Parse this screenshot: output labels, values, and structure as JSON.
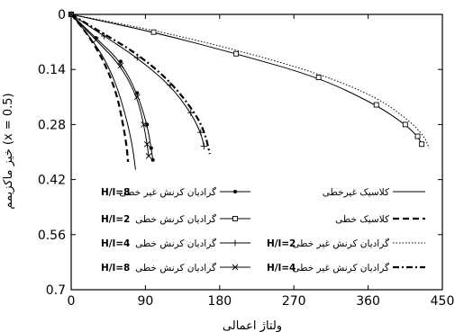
{
  "chart_data": {
    "type": "line",
    "title": "",
    "xlabel": "ولتاژ اعمالی",
    "ylabel": "خیز ماکزیمم (x = 0.5)",
    "xlim": [
      0,
      450
    ],
    "ylim": [
      0,
      0.7
    ],
    "y_inverted": true,
    "xticks": [
      "0",
      "90",
      "180",
      "270",
      "360",
      "450"
    ],
    "yticks": [
      "0",
      "0.14",
      "0.28",
      "0.42",
      "0.56",
      "0.7"
    ],
    "grid": false,
    "legend_placement": "lower-center",
    "series": [
      {
        "name": "کلاسیک غیرخطی",
        "line": "solid",
        "marker": "none",
        "x": [
          0,
          20,
          40,
          55,
          65,
          72,
          76,
          78
        ],
        "y": [
          0,
          0.05,
          0.11,
          0.18,
          0.25,
          0.31,
          0.36,
          0.395
        ]
      },
      {
        "name": "کلاسیک خطی",
        "line": "dashed",
        "marker": "none",
        "x": [
          0,
          20,
          40,
          55,
          62,
          67,
          69
        ],
        "y": [
          0,
          0.05,
          0.12,
          0.2,
          0.27,
          0.33,
          0.375
        ]
      },
      {
        "name": "گرادیان کرنش غیر خطی H/l=2",
        "line": "dotted",
        "marker": "none",
        "x": [
          0,
          100,
          200,
          300,
          370,
          410,
          428,
          434
        ],
        "y": [
          0,
          0.04,
          0.09,
          0.15,
          0.21,
          0.27,
          0.31,
          0.34
        ]
      },
      {
        "name": "گرادیان کرنش غیر خطی H/l=4",
        "line": "dashdot",
        "marker": "none",
        "x": [
          0,
          40,
          80,
          120,
          150,
          162,
          168
        ],
        "y": [
          0,
          0.05,
          0.1,
          0.17,
          0.25,
          0.3,
          0.355
        ]
      },
      {
        "name": "گرادیان کرنش غیر خطی H/l=8",
        "line": "solid",
        "marker": "dot",
        "x": [
          0,
          30,
          60,
          80,
          92,
          97,
          99
        ],
        "y": [
          0,
          0.06,
          0.12,
          0.2,
          0.28,
          0.34,
          0.37
        ]
      },
      {
        "name": "گرادیان کرنش خطی H/l=2",
        "line": "solid",
        "marker": "square",
        "x": [
          0,
          100,
          200,
          300,
          370,
          405,
          420,
          425
        ],
        "y": [
          0,
          0.045,
          0.1,
          0.16,
          0.23,
          0.28,
          0.31,
          0.33
        ]
      },
      {
        "name": "گرادیان کرنش خطی H/l=4",
        "line": "solid",
        "marker": "plus",
        "x": [
          0,
          40,
          80,
          120,
          145,
          157,
          161
        ],
        "y": [
          0,
          0.055,
          0.11,
          0.18,
          0.25,
          0.3,
          0.335
        ]
      },
      {
        "name": "گرادیان کرنش خطی H/l=8",
        "line": "solid",
        "marker": "x",
        "x": [
          0,
          30,
          60,
          80,
          88,
          92,
          94
        ],
        "y": [
          0,
          0.065,
          0.13,
          0.21,
          0.28,
          0.33,
          0.36
        ]
      }
    ],
    "legend": {
      "left_column": [
        {
          "text": "گرادیان کرنش غیر خطی",
          "bold": "H/l=8",
          "series": 4
        },
        {
          "text": "گرادیان کرنش خطی",
          "bold": "H/l=2",
          "series": 5
        },
        {
          "text": "گرادیان کرنش خطی",
          "bold": "H/l=4",
          "series": 6
        },
        {
          "text": "گرادیان کرنش خطی",
          "bold": "H/l=8",
          "series": 7
        }
      ],
      "right_column": [
        {
          "text": "کلاسیک غیرخطی",
          "bold": "",
          "series": 0
        },
        {
          "text": "کلاسیک خطی",
          "bold": "",
          "series": 1
        },
        {
          "text": "گرادیان کرنش غیر خطی",
          "bold": "H/l=2",
          "series": 2
        },
        {
          "text": "گرادیان کرنش غیر خطی",
          "bold": "H/l=4",
          "series": 3
        }
      ]
    }
  }
}
